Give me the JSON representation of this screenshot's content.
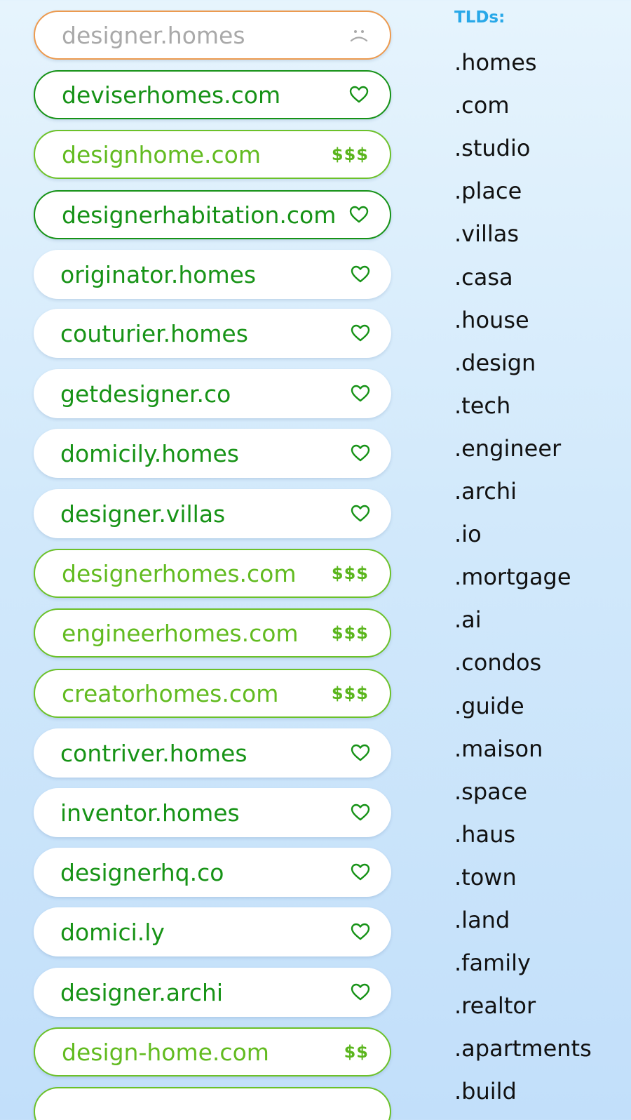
{
  "domains": [
    {
      "name": "designer.homes",
      "status": "taken",
      "badge": "frown-icon"
    },
    {
      "name": "deviserhomes.com",
      "status": "fav",
      "badge": "heart-icon"
    },
    {
      "name": "designhome.com",
      "status": "premium",
      "price": "$$$"
    },
    {
      "name": "designerhabitation.com",
      "status": "fav",
      "badge": "heart-icon"
    },
    {
      "name": "originator.homes",
      "status": "plain",
      "badge": "heart-icon"
    },
    {
      "name": "couturier.homes",
      "status": "plain",
      "badge": "heart-icon"
    },
    {
      "name": "getdesigner.co",
      "status": "plain",
      "badge": "heart-icon"
    },
    {
      "name": "domicily.homes",
      "status": "plain",
      "badge": "heart-icon"
    },
    {
      "name": "designer.villas",
      "status": "plain",
      "badge": "heart-icon"
    },
    {
      "name": "designerhomes.com",
      "status": "premium",
      "price": "$$$"
    },
    {
      "name": "engineerhomes.com",
      "status": "premium",
      "price": "$$$"
    },
    {
      "name": "creatorhomes.com",
      "status": "premium",
      "price": "$$$"
    },
    {
      "name": "contriver.homes",
      "status": "plain",
      "badge": "heart-icon"
    },
    {
      "name": "inventor.homes",
      "status": "plain",
      "badge": "heart-icon"
    },
    {
      "name": "designerhq.co",
      "status": "plain",
      "badge": "heart-icon"
    },
    {
      "name": "domici.ly",
      "status": "plain",
      "badge": "heart-icon"
    },
    {
      "name": "designer.archi",
      "status": "plain",
      "badge": "heart-icon"
    },
    {
      "name": "design-home.com",
      "status": "premium",
      "price": "$$"
    },
    {
      "name": "",
      "status": "premium",
      "price": ""
    }
  ],
  "tld_panel": {
    "heading": "TLDs:",
    "items": [
      ".homes",
      ".com",
      ".studio",
      ".place",
      ".villas",
      ".casa",
      ".house",
      ".design",
      ".tech",
      ".engineer",
      ".archi",
      ".io",
      ".mortgage",
      ".ai",
      ".condos",
      ".guide",
      ".maison",
      ".space",
      ".haus",
      ".town",
      ".land",
      ".family",
      ".realtor",
      ".apartments",
      ".build"
    ]
  },
  "colors": {
    "fav_green": "#169216",
    "premium_green": "#62bb20",
    "taken_orange": "#ec9a4f",
    "taken_text": "#a9a9a9",
    "tld_heading": "#28a8e8"
  }
}
